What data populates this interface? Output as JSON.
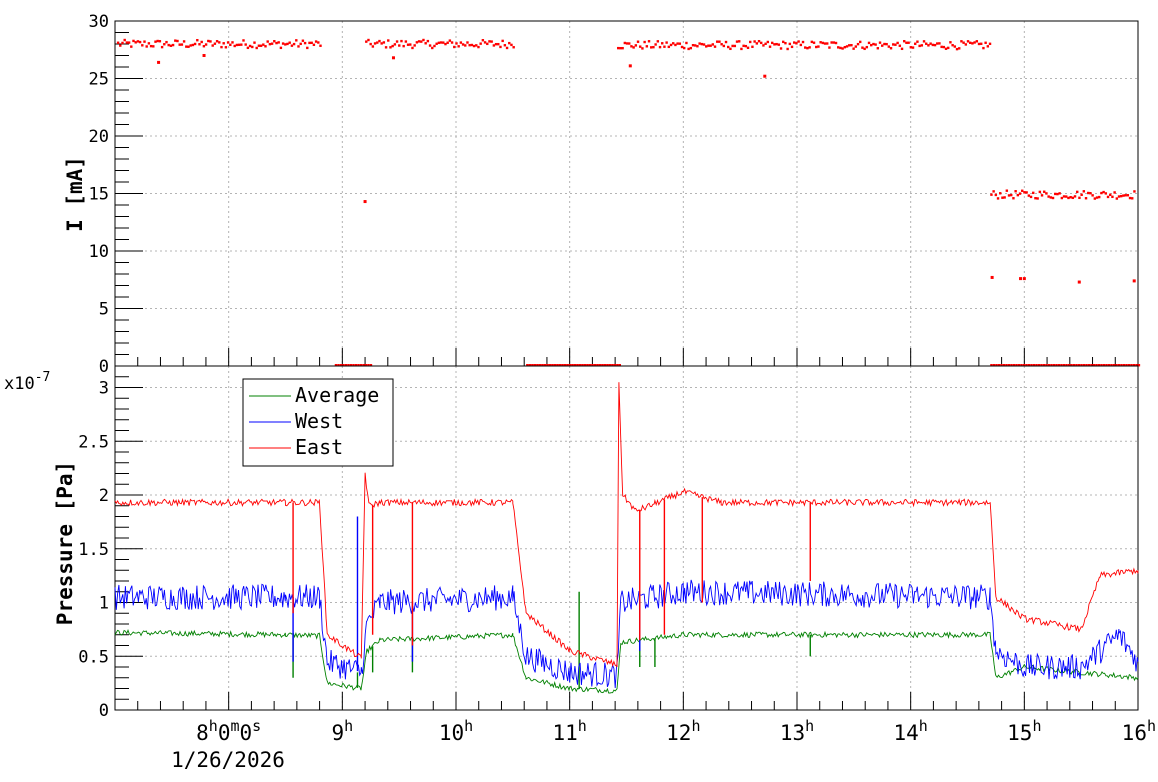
{
  "chart_data": [
    {
      "type": "scatter",
      "panel": "top",
      "ylabel": "I [mA]",
      "ylim": [
        0,
        30
      ],
      "yticks": [
        0,
        5,
        10,
        15,
        20,
        25,
        30
      ],
      "grid": true,
      "color": "#ff0000",
      "series": [
        {
          "segments": [
            {
              "x_start": "7:01",
              "x_end": "8:48",
              "y": 28.0
            },
            {
              "x_start": "9:12",
              "x_end": "10:30",
              "y": 28.0
            },
            {
              "x_start": "11:25",
              "x_end": "14:42",
              "y": 27.9
            },
            {
              "x_start": "14:42",
              "x_end": "15:58",
              "y": 14.9
            }
          ],
          "zero_segments": [
            {
              "x_start": "8:56",
              "x_end": "9:15",
              "y": 0
            },
            {
              "x_start": "10:37",
              "x_end": "11:27",
              "y": 0
            },
            {
              "x_start": "14:42",
              "x_end": "16:00",
              "y": 0
            }
          ],
          "points": [
            {
              "x": "7:23",
              "y": 26.4
            },
            {
              "x": "7:47",
              "y": 27.0
            },
            {
              "x": "9:12",
              "y": 14.3
            },
            {
              "x": "9:27",
              "y": 26.8
            },
            {
              "x": "11:32",
              "y": 26.1
            },
            {
              "x": "12:43",
              "y": 25.2
            },
            {
              "x": "14:43",
              "y": 7.7
            },
            {
              "x": "14:58",
              "y": 7.6
            },
            {
              "x": "15:00",
              "y": 7.6
            },
            {
              "x": "15:29",
              "y": 7.3
            },
            {
              "x": "15:58",
              "y": 7.4
            }
          ]
        }
      ]
    },
    {
      "type": "line",
      "panel": "bottom",
      "ylabel": "Pressure [Pa]",
      "exponent_label": "x10",
      "exponent_value": "-7",
      "ylim": [
        0,
        3.2
      ],
      "yticks": [
        "0",
        "0.5",
        "1",
        "1.5",
        "2",
        "2.5",
        "3"
      ],
      "grid": true,
      "legend_position": "top-left",
      "series": [
        {
          "name": "Average",
          "color": "#008000",
          "points": [
            [
              "7:00",
              0.72
            ],
            [
              "8:30",
              0.7
            ],
            [
              "8:48",
              0.69
            ],
            [
              "8:52",
              0.25
            ],
            [
              "9:10",
              0.2
            ],
            [
              "9:13",
              0.55
            ],
            [
              "9:20",
              0.65
            ],
            [
              "10:30",
              0.7
            ],
            [
              "10:37",
              0.3
            ],
            [
              "11:00",
              0.2
            ],
            [
              "11:25",
              0.18
            ],
            [
              "11:27",
              0.63
            ],
            [
              "12:00",
              0.7
            ],
            [
              "14:42",
              0.7
            ],
            [
              "14:45",
              0.3
            ],
            [
              "15:00",
              0.4
            ],
            [
              "15:30",
              0.35
            ],
            [
              "16:00",
              0.3
            ]
          ],
          "spikes": [
            [
              "8:34",
              0.3
            ],
            [
              "9:08",
              0.35
            ],
            [
              "9:16",
              0.35
            ],
            [
              "9:37",
              0.35
            ],
            [
              "11:05",
              1.1
            ],
            [
              "11:37",
              0.4
            ],
            [
              "11:45",
              0.4
            ],
            [
              "13:07",
              0.5
            ]
          ]
        },
        {
          "name": "West",
          "color": "#0000ff",
          "points": [
            [
              "7:00",
              1.05
            ],
            [
              "8:30",
              1.05
            ],
            [
              "8:48",
              1.05
            ],
            [
              "8:52",
              0.45
            ],
            [
              "9:10",
              0.35
            ],
            [
              "9:13",
              0.8
            ],
            [
              "9:20",
              1.0
            ],
            [
              "10:30",
              1.05
            ],
            [
              "10:37",
              0.5
            ],
            [
              "11:00",
              0.35
            ],
            [
              "11:25",
              0.32
            ],
            [
              "11:27",
              1.0
            ],
            [
              "12:00",
              1.1
            ],
            [
              "14:42",
              1.05
            ],
            [
              "14:45",
              0.55
            ],
            [
              "15:00",
              0.4
            ],
            [
              "15:30",
              0.4
            ],
            [
              "15:50",
              0.7
            ],
            [
              "16:00",
              0.45
            ]
          ],
          "spikes": [
            [
              "8:34",
              0.45
            ],
            [
              "9:08",
              1.8
            ],
            [
              "9:16",
              0.9
            ],
            [
              "9:37",
              0.45
            ],
            [
              "11:37",
              0.55
            ]
          ]
        },
        {
          "name": "East",
          "color": "#ff0000",
          "points": [
            [
              "7:00",
              1.93
            ],
            [
              "8:30",
              1.93
            ],
            [
              "8:48",
              1.93
            ],
            [
              "8:52",
              0.7
            ],
            [
              "9:10",
              0.48
            ],
            [
              "9:12",
              2.2
            ],
            [
              "9:14",
              1.9
            ],
            [
              "9:20",
              1.93
            ],
            [
              "10:30",
              1.93
            ],
            [
              "10:37",
              0.9
            ],
            [
              "11:00",
              0.55
            ],
            [
              "11:25",
              0.42
            ],
            [
              "11:26",
              3.05
            ],
            [
              "11:28",
              2.0
            ],
            [
              "11:35",
              1.85
            ],
            [
              "11:45",
              1.92
            ],
            [
              "12:00",
              2.03
            ],
            [
              "12:20",
              1.93
            ],
            [
              "14:42",
              1.93
            ],
            [
              "14:45",
              1.05
            ],
            [
              "15:00",
              0.85
            ],
            [
              "15:30",
              0.75
            ],
            [
              "15:40",
              1.25
            ],
            [
              "16:00",
              1.3
            ]
          ],
          "spikes": [
            [
              "8:34",
              0.9
            ],
            [
              "9:16",
              0.7
            ],
            [
              "9:37",
              0.6
            ],
            [
              "11:37",
              0.65
            ],
            [
              "11:50",
              0.7
            ],
            [
              "12:10",
              1.0
            ],
            [
              "13:07",
              1.2
            ]
          ]
        }
      ]
    }
  ],
  "x_axis": {
    "labels": [
      {
        "t": "8:00",
        "hours": "8",
        "minutes": "0",
        "seconds": "0",
        "suffix_h": "h",
        "suffix_m": "m",
        "suffix_s": "s"
      },
      {
        "t": "9:00",
        "hours": "9",
        "suffix_h": "h"
      },
      {
        "t": "10:00",
        "hours": "10",
        "suffix_h": "h"
      },
      {
        "t": "11:00",
        "hours": "11",
        "suffix_h": "h"
      },
      {
        "t": "12:00",
        "hours": "12",
        "suffix_h": "h"
      },
      {
        "t": "13:00",
        "hours": "13",
        "suffix_h": "h"
      },
      {
        "t": "14:00",
        "hours": "14",
        "suffix_h": "h"
      },
      {
        "t": "15:00",
        "hours": "15",
        "suffix_h": "h"
      },
      {
        "t": "16:00",
        "hours": "16",
        "suffix_h": "h"
      }
    ],
    "date": "1/26/2026",
    "range": [
      "7:00",
      "16:00"
    ]
  }
}
